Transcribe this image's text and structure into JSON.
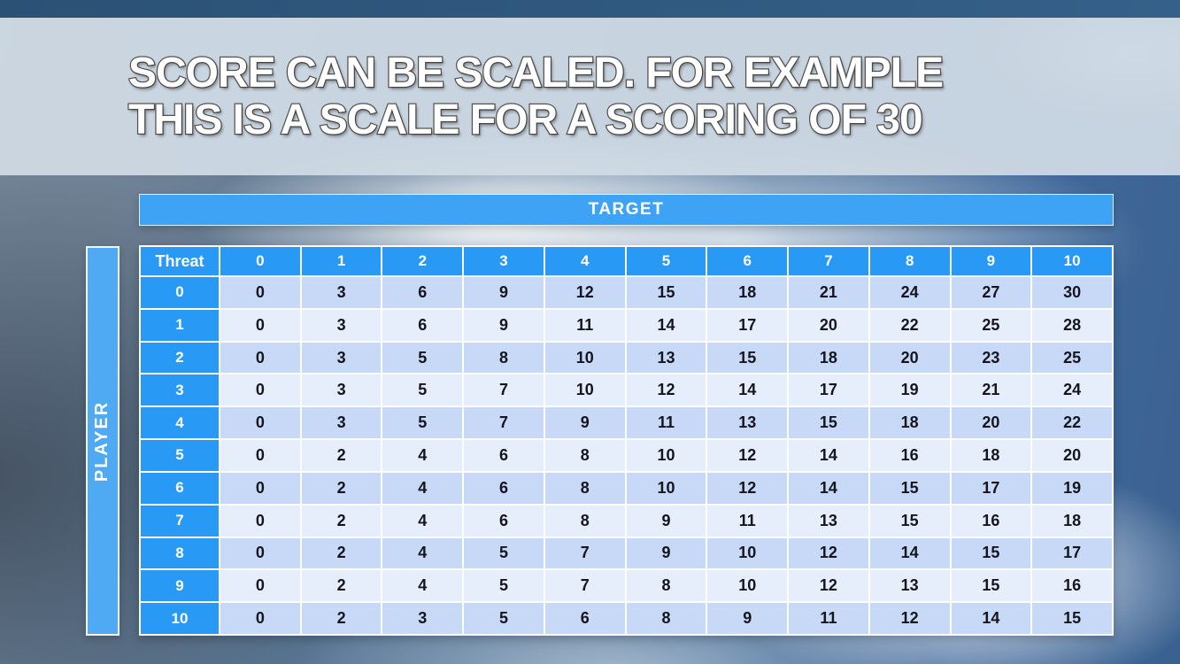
{
  "slide": {
    "title_line1": "SCORE CAN BE SCALED. FOR EXAMPLE",
    "title_line2": "THIS IS A SCALE FOR A SCORING OF 30"
  },
  "score_matrix": {
    "target_label": "TARGET",
    "player_label": "PLAYER",
    "corner_label": "Threat",
    "column_headers": [
      "0",
      "1",
      "2",
      "3",
      "4",
      "5",
      "6",
      "7",
      "8",
      "9",
      "10"
    ],
    "row_headers": [
      "0",
      "1",
      "2",
      "3",
      "4",
      "5",
      "6",
      "7",
      "8",
      "9",
      "10"
    ],
    "rows": [
      [
        0,
        3,
        6,
        9,
        12,
        15,
        18,
        21,
        24,
        27,
        30
      ],
      [
        0,
        3,
        6,
        9,
        11,
        14,
        17,
        20,
        22,
        25,
        28
      ],
      [
        0,
        3,
        5,
        8,
        10,
        13,
        15,
        18,
        20,
        23,
        25
      ],
      [
        0,
        3,
        5,
        7,
        10,
        12,
        14,
        17,
        19,
        21,
        24
      ],
      [
        0,
        3,
        5,
        7,
        9,
        11,
        13,
        15,
        18,
        20,
        22
      ],
      [
        0,
        2,
        4,
        6,
        8,
        10,
        12,
        14,
        16,
        18,
        20
      ],
      [
        0,
        2,
        4,
        6,
        8,
        10,
        12,
        14,
        15,
        17,
        19
      ],
      [
        0,
        2,
        4,
        6,
        8,
        9,
        11,
        13,
        15,
        16,
        18
      ],
      [
        0,
        2,
        4,
        5,
        7,
        9,
        10,
        12,
        14,
        15,
        17
      ],
      [
        0,
        2,
        4,
        5,
        7,
        8,
        10,
        12,
        13,
        15,
        16
      ],
      [
        0,
        2,
        3,
        5,
        6,
        8,
        9,
        11,
        12,
        14,
        15
      ]
    ]
  },
  "colors": {
    "header_blue": "#2899F4",
    "target_bar_blue": "#3FA3F5",
    "player_bar_blue": "#4FA9F3",
    "row_dark": "#C7D9F6",
    "row_light": "#E7EEFB",
    "body_text": "#15151E",
    "top_strip": "#2B5175",
    "title_text": "#FFFFFF",
    "title_outline": "#54524E"
  }
}
